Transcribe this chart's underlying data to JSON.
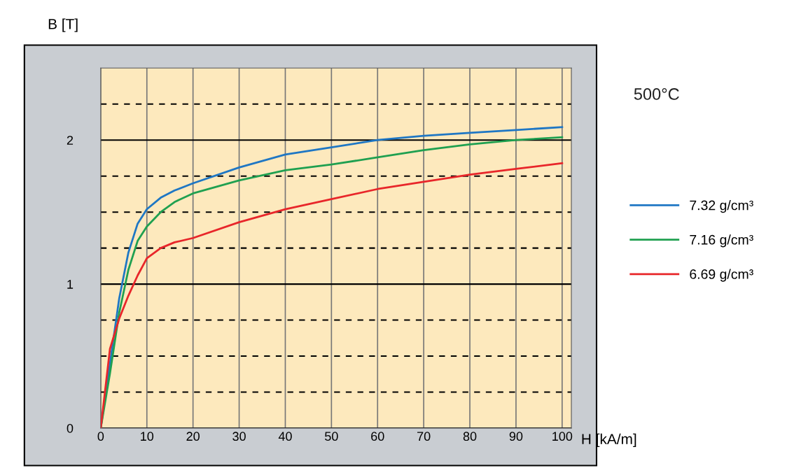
{
  "chart_data": {
    "type": "line",
    "xlabel": "H [kA/m]",
    "ylabel": "B [T]",
    "annotations": [
      "500°C"
    ],
    "xlim": [
      0,
      102
    ],
    "xticks": [
      0,
      10,
      20,
      30,
      40,
      50,
      60,
      70,
      80,
      90,
      100
    ],
    "ylim": [
      0,
      2.5
    ],
    "yticks": [
      0,
      {
        "value": 0.25,
        "label": null
      },
      {
        "value": 0.5,
        "label": null
      },
      {
        "value": 0.75,
        "label": null
      },
      1,
      {
        "value": 1.25,
        "label": null
      },
      {
        "value": 1.5,
        "label": null
      },
      {
        "value": 1.75,
        "label": null
      },
      2,
      {
        "value": 2.25,
        "label": null
      }
    ],
    "grid": true,
    "legend": "right",
    "marker": "none",
    "line_style": "solid",
    "series": [
      {
        "name": "7.32 g/cm³",
        "color": "#1f77c4",
        "x": [
          0,
          2,
          4,
          6,
          8,
          10,
          13,
          16,
          20,
          30,
          40,
          50,
          60,
          70,
          80,
          90,
          100
        ],
        "values": [
          0,
          0.45,
          0.9,
          1.22,
          1.42,
          1.52,
          1.6,
          1.65,
          1.7,
          1.81,
          1.9,
          1.95,
          2.0,
          2.03,
          2.05,
          2.07,
          2.09
        ]
      },
      {
        "name": "7.16 g/cm³",
        "color": "#1fa050",
        "x": [
          0,
          2,
          4,
          6,
          8,
          10,
          13,
          16,
          20,
          30,
          40,
          50,
          60,
          70,
          80,
          90,
          100
        ],
        "values": [
          0,
          0.38,
          0.8,
          1.1,
          1.3,
          1.4,
          1.5,
          1.57,
          1.63,
          1.72,
          1.79,
          1.83,
          1.88,
          1.93,
          1.97,
          2.0,
          2.02
        ]
      },
      {
        "name": "6.69 g/cm³",
        "color": "#e8262a",
        "x": [
          0,
          2,
          4,
          6,
          8,
          10,
          13,
          16,
          20,
          30,
          40,
          50,
          60,
          70,
          80,
          90,
          100
        ],
        "values": [
          0,
          0.55,
          0.76,
          0.92,
          1.06,
          1.18,
          1.25,
          1.29,
          1.32,
          1.43,
          1.52,
          1.59,
          1.66,
          1.71,
          1.76,
          1.8,
          1.84
        ]
      }
    ]
  }
}
